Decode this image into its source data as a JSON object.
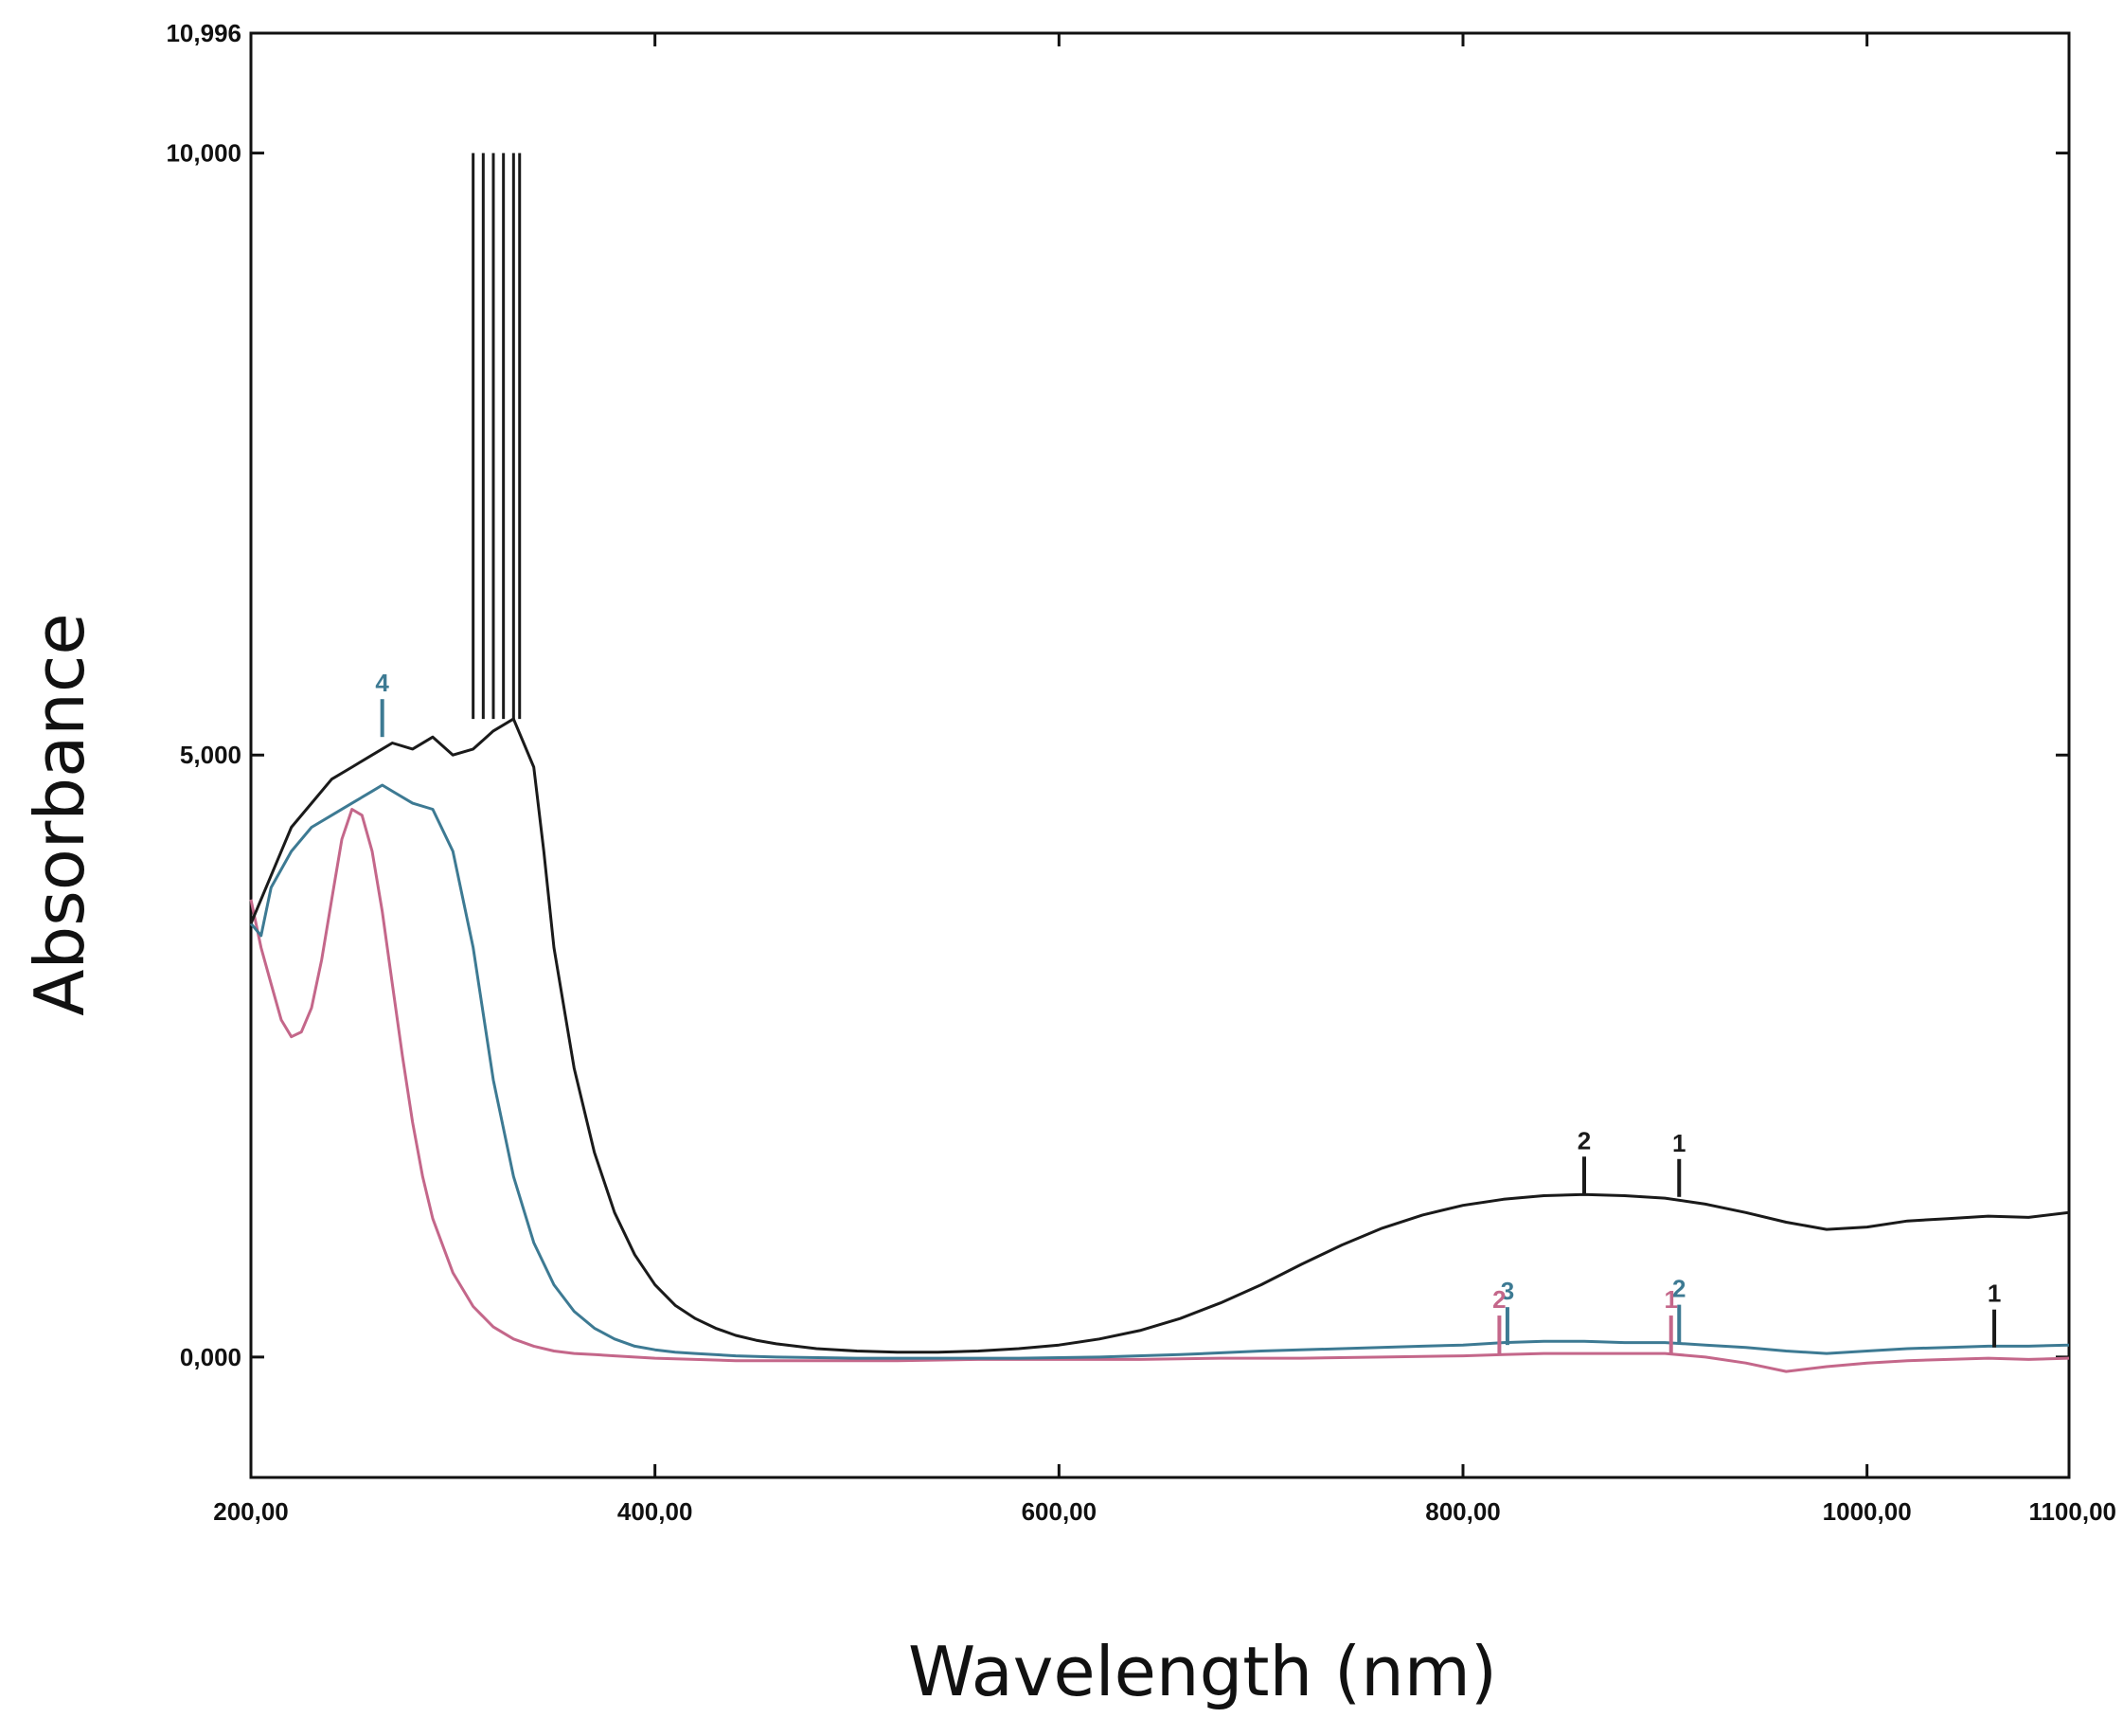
{
  "chart_data": {
    "type": "line",
    "title": "",
    "xlabel": "Wavelength (nm)",
    "ylabel": "Absorbance",
    "xlim": [
      200,
      1100
    ],
    "ylim": [
      -1.0,
      10.996
    ],
    "x_ticks": [
      {
        "value": 200,
        "label": "200,00"
      },
      {
        "value": 400,
        "label": "400,00"
      },
      {
        "value": 600,
        "label": "600,00"
      },
      {
        "value": 800,
        "label": "800,00"
      },
      {
        "value": 1000,
        "label": "1000,00"
      },
      {
        "value": 1100,
        "label": "1100,00"
      }
    ],
    "y_ticks": [
      {
        "value": 0,
        "label": "0,000"
      },
      {
        "value": 5,
        "label": "5,000"
      },
      {
        "value": 10,
        "label": "10,000"
      },
      {
        "value": 10.996,
        "label": "10,996"
      }
    ],
    "grid": false,
    "series": [
      {
        "name": "black",
        "color": "#1a1a1a",
        "x": [
          200,
          210,
          220,
          230,
          240,
          250,
          260,
          270,
          280,
          290,
          300,
          310,
          320,
          330,
          335,
          340,
          345,
          350,
          360,
          370,
          380,
          390,
          400,
          410,
          420,
          430,
          440,
          450,
          460,
          480,
          500,
          520,
          540,
          560,
          580,
          600,
          620,
          640,
          660,
          680,
          700,
          720,
          740,
          760,
          780,
          800,
          820,
          840,
          860,
          880,
          900,
          920,
          940,
          960,
          980,
          1000,
          1020,
          1040,
          1060,
          1080,
          1100
        ],
        "y": [
          3.6,
          4.0,
          4.4,
          4.6,
          4.8,
          4.9,
          5.0,
          5.1,
          5.05,
          5.15,
          5.0,
          5.05,
          5.2,
          5.3,
          5.1,
          4.9,
          4.2,
          3.4,
          2.4,
          1.7,
          1.2,
          0.85,
          0.6,
          0.43,
          0.32,
          0.24,
          0.18,
          0.14,
          0.11,
          0.07,
          0.05,
          0.04,
          0.04,
          0.05,
          0.07,
          0.1,
          0.15,
          0.22,
          0.32,
          0.45,
          0.6,
          0.77,
          0.93,
          1.07,
          1.18,
          1.26,
          1.31,
          1.34,
          1.35,
          1.34,
          1.32,
          1.27,
          1.2,
          1.12,
          1.06,
          1.08,
          1.13,
          1.15,
          1.17,
          1.16,
          1.2
        ]
      },
      {
        "name": "blue",
        "color": "#3d7a93",
        "x": [
          200,
          205,
          210,
          220,
          230,
          240,
          250,
          260,
          265,
          270,
          280,
          290,
          300,
          310,
          320,
          330,
          340,
          350,
          360,
          370,
          380,
          390,
          400,
          410,
          420,
          440,
          460,
          500,
          540,
          580,
          620,
          660,
          700,
          740,
          780,
          800,
          820,
          840,
          860,
          880,
          900,
          920,
          940,
          960,
          980,
          1000,
          1020,
          1040,
          1060,
          1080,
          1100
        ],
        "y": [
          3.6,
          3.5,
          3.9,
          4.2,
          4.4,
          4.5,
          4.6,
          4.7,
          4.75,
          4.7,
          4.6,
          4.55,
          4.2,
          3.4,
          2.3,
          1.5,
          0.95,
          0.6,
          0.38,
          0.24,
          0.15,
          0.09,
          0.06,
          0.04,
          0.03,
          0.01,
          0.0,
          -0.01,
          -0.01,
          -0.01,
          0.0,
          0.02,
          0.05,
          0.07,
          0.09,
          0.1,
          0.12,
          0.13,
          0.13,
          0.12,
          0.12,
          0.1,
          0.08,
          0.05,
          0.03,
          0.05,
          0.07,
          0.08,
          0.09,
          0.09,
          0.1
        ]
      },
      {
        "name": "pink",
        "color": "#c4678a",
        "x": [
          200,
          205,
          210,
          215,
          220,
          225,
          230,
          235,
          240,
          245,
          250,
          255,
          260,
          265,
          270,
          275,
          280,
          285,
          290,
          300,
          310,
          320,
          330,
          340,
          350,
          360,
          370,
          380,
          390,
          400,
          420,
          440,
          480,
          520,
          560,
          600,
          640,
          680,
          720,
          760,
          800,
          820,
          840,
          860,
          880,
          900,
          920,
          940,
          960,
          980,
          1000,
          1020,
          1040,
          1060,
          1080,
          1100
        ],
        "y": [
          3.8,
          3.4,
          3.1,
          2.8,
          2.66,
          2.7,
          2.9,
          3.3,
          3.8,
          4.3,
          4.55,
          4.5,
          4.2,
          3.7,
          3.1,
          2.5,
          1.95,
          1.5,
          1.15,
          0.7,
          0.42,
          0.25,
          0.15,
          0.09,
          0.05,
          0.03,
          0.02,
          0.01,
          0.0,
          -0.01,
          -0.02,
          -0.03,
          -0.03,
          -0.03,
          -0.02,
          -0.02,
          -0.02,
          -0.01,
          -0.01,
          0.0,
          0.01,
          0.02,
          0.03,
          0.03,
          0.03,
          0.03,
          0.0,
          -0.05,
          -0.12,
          -0.08,
          -0.05,
          -0.03,
          -0.02,
          -0.01,
          -0.02,
          -0.01
        ]
      }
    ],
    "markers": [
      {
        "label": "2",
        "x": 860,
        "y": 1.35,
        "color": "#1a1a1a"
      },
      {
        "label": "1",
        "x": 907,
        "y": 1.33,
        "color": "#1a1a1a"
      },
      {
        "label": "4",
        "x": 265,
        "y": 5.15,
        "color": "#3d7a93"
      },
      {
        "label": "3",
        "x": 822,
        "y": 0.1,
        "color": "#3d7a93"
      },
      {
        "label": "2",
        "x": 907,
        "y": 0.12,
        "color": "#3d7a93"
      },
      {
        "label": "1",
        "x": 1063,
        "y": 0.08,
        "color": "#1a1a1a"
      },
      {
        "label": "2",
        "x": 818,
        "y": 0.03,
        "color": "#c4678a"
      },
      {
        "label": "1",
        "x": 903,
        "y": 0.03,
        "color": "#c4678a"
      }
    ]
  }
}
